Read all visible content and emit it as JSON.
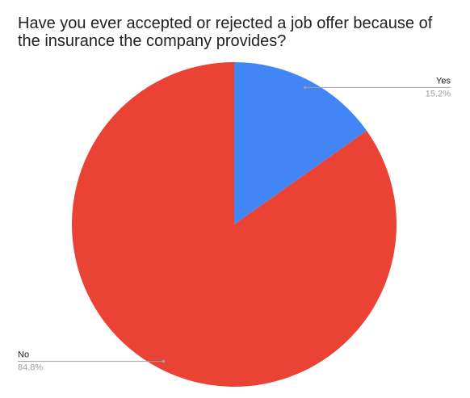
{
  "chart_data": {
    "type": "pie",
    "title": "Have you ever accepted or rejected a job offer because of the insurance the company provides?",
    "categories": [
      "Yes",
      "No"
    ],
    "values": [
      15.2,
      84.8
    ],
    "value_labels": [
      "15.2%",
      "84.8%"
    ],
    "colors": [
      "#4285f4",
      "#ea4335"
    ]
  }
}
